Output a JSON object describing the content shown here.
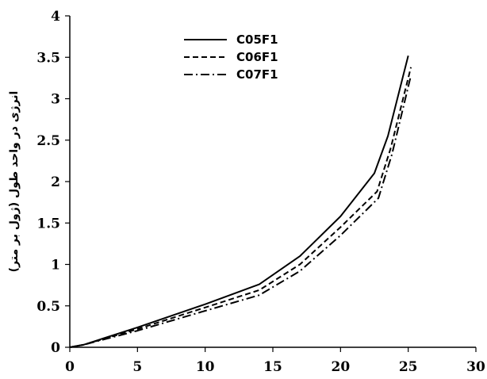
{
  "chart_data": {
    "type": "line",
    "title": "",
    "xlabel": "",
    "ylabel": "انرژی در واحد طول (ژول بر متر)",
    "xlim": [
      0,
      30
    ],
    "ylim": [
      0,
      4
    ],
    "xticks": [
      "0",
      "5",
      "10",
      "15",
      "20",
      "25",
      "30"
    ],
    "yticks": [
      "0",
      "0.5",
      "1",
      "1.5",
      "2",
      "2.5",
      "3",
      "3.5",
      "4"
    ],
    "grid": false,
    "legend_position": "top-center",
    "series": [
      {
        "name": "C05F1",
        "style": "solid",
        "color": "#000000",
        "x": [
          0,
          1,
          5,
          10,
          14,
          17,
          20,
          22.5,
          23.5,
          25
        ],
        "y": [
          0,
          0.03,
          0.24,
          0.52,
          0.76,
          1.1,
          1.58,
          2.1,
          2.55,
          3.52
        ]
      },
      {
        "name": "C06F1",
        "style": "dashed",
        "color": "#000000",
        "x": [
          0,
          1,
          5,
          10,
          14,
          17,
          20,
          22.7,
          23.7,
          25.2
        ],
        "y": [
          0,
          0.03,
          0.22,
          0.48,
          0.69,
          1.0,
          1.45,
          1.88,
          2.4,
          3.38
        ]
      },
      {
        "name": "C07F1",
        "style": "dashdot",
        "color": "#000000",
        "x": [
          0,
          1,
          5,
          10,
          14,
          17,
          20,
          22.8,
          23.8,
          25.2
        ],
        "y": [
          0,
          0.03,
          0.2,
          0.44,
          0.63,
          0.92,
          1.35,
          1.8,
          2.33,
          3.28
        ]
      }
    ]
  }
}
